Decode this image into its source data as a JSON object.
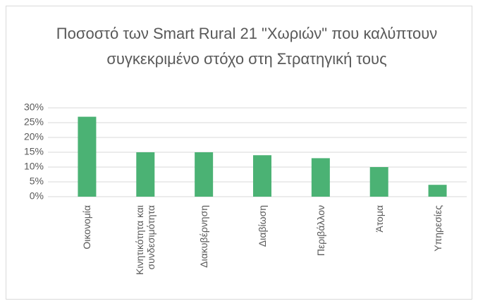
{
  "chart_data": {
    "type": "bar",
    "title": "Ποσοστό των Smart Rural 21 \"Χωριών\" που καλύπτουν συγκεκριμένο στόχο στη Στρατηγική τους",
    "categories": [
      "Οικονομία",
      "Κινητικότητα και συνδεσιμότητα",
      "Διακυβέρνηση",
      "Διαβίωση",
      "Περιβάλλον",
      "Άτομα",
      "Υπηρεσίες"
    ],
    "values": [
      27,
      15,
      15,
      14,
      13,
      10,
      4
    ],
    "color": "#4bb274",
    "ylim": [
      0,
      30
    ],
    "yticks": [
      {
        "value": 0,
        "label": "0%"
      },
      {
        "value": 5,
        "label": "5%"
      },
      {
        "value": 10,
        "label": "10%"
      },
      {
        "value": 15,
        "label": "15%"
      },
      {
        "value": 20,
        "label": "20%"
      },
      {
        "value": 25,
        "label": "25%"
      },
      {
        "value": 30,
        "label": "30%"
      }
    ],
    "grid": true
  }
}
